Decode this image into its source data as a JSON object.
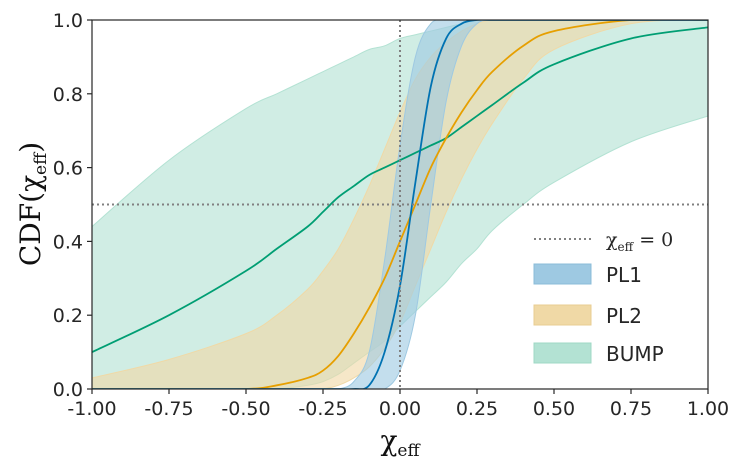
{
  "chart_data": {
    "type": "line",
    "xlabel": {
      "symbol": "χ",
      "sub": "eff"
    },
    "ylabel": {
      "prefix": "CDF(",
      "symbol": "χ",
      "sub": "eff",
      "suffix": ")"
    },
    "xlim": [
      -1.0,
      1.0
    ],
    "ylim": [
      0.0,
      1.0
    ],
    "xticks": [
      "-1.00",
      "-0.75",
      "-0.50",
      "-0.25",
      "0.00",
      "0.25",
      "0.50",
      "0.75",
      "1.00"
    ],
    "yticks": [
      "0.0",
      "0.2",
      "0.4",
      "0.6",
      "0.8",
      "1.0"
    ],
    "grid": false,
    "legend_position": "bottom-right",
    "reference_lines": [
      {
        "orientation": "vertical",
        "value": 0.0,
        "style": "dotted",
        "color": "#808080",
        "label": {
          "symbol": "χ",
          "sub": "eff",
          "text": " = 0"
        }
      },
      {
        "orientation": "horizontal",
        "value": 0.5,
        "style": "dotted",
        "color": "#808080"
      }
    ],
    "x": [
      -1.0,
      -0.75,
      -0.5,
      -0.4,
      -0.3,
      -0.25,
      -0.2,
      -0.15,
      -0.1,
      -0.05,
      0.0,
      0.05,
      0.1,
      0.15,
      0.2,
      0.25,
      0.3,
      0.4,
      0.5,
      0.75,
      1.0
    ],
    "series": [
      {
        "name": "PL1",
        "color": "#0072b2",
        "fill": "#9ec9e2",
        "median": [
          0.0,
          0.0,
          0.0,
          0.0,
          0.0,
          0.0,
          0.0,
          0.0,
          0.01,
          0.1,
          0.28,
          0.56,
          0.82,
          0.95,
          0.99,
          1.0,
          1.0,
          1.0,
          1.0,
          1.0,
          1.0
        ],
        "lower": [
          0.0,
          0.0,
          0.0,
          0.0,
          0.0,
          0.0,
          0.0,
          0.0,
          0.0,
          0.0,
          0.05,
          0.2,
          0.5,
          0.78,
          0.93,
          0.99,
          1.0,
          1.0,
          1.0,
          1.0,
          1.0
        ],
        "upper": [
          0.0,
          0.0,
          0.0,
          0.0,
          0.0,
          0.0,
          0.0,
          0.02,
          0.1,
          0.35,
          0.66,
          0.9,
          0.99,
          1.0,
          1.0,
          1.0,
          1.0,
          1.0,
          1.0,
          1.0,
          1.0
        ]
      },
      {
        "name": "PL2",
        "color": "#e69f00",
        "fill": "#f0d9a6",
        "median": [
          0.0,
          0.0,
          0.0,
          0.01,
          0.03,
          0.05,
          0.09,
          0.15,
          0.22,
          0.3,
          0.4,
          0.5,
          0.6,
          0.68,
          0.75,
          0.81,
          0.86,
          0.93,
          0.97,
          1.0,
          1.0
        ],
        "lower": [
          0.0,
          0.0,
          0.0,
          0.0,
          0.0,
          0.0,
          0.01,
          0.03,
          0.06,
          0.11,
          0.18,
          0.28,
          0.38,
          0.48,
          0.57,
          0.65,
          0.72,
          0.84,
          0.92,
          0.99,
          1.0
        ],
        "upper": [
          0.03,
          0.08,
          0.15,
          0.2,
          0.27,
          0.32,
          0.38,
          0.46,
          0.55,
          0.65,
          0.75,
          0.84,
          0.9,
          0.94,
          0.97,
          0.99,
          1.0,
          1.0,
          1.0,
          1.0,
          1.0
        ]
      },
      {
        "name": "BUMP",
        "color": "#009e73",
        "fill": "#b3e2d3",
        "median": [
          0.1,
          0.2,
          0.32,
          0.38,
          0.44,
          0.48,
          0.52,
          0.55,
          0.58,
          0.6,
          0.62,
          0.64,
          0.66,
          0.68,
          0.71,
          0.74,
          0.77,
          0.83,
          0.88,
          0.95,
          0.98
        ],
        "lower": [
          0.0,
          0.0,
          0.0,
          0.0,
          0.01,
          0.02,
          0.04,
          0.07,
          0.1,
          0.13,
          0.17,
          0.21,
          0.25,
          0.29,
          0.34,
          0.38,
          0.43,
          0.5,
          0.56,
          0.67,
          0.74
        ],
        "upper": [
          0.44,
          0.62,
          0.76,
          0.8,
          0.84,
          0.86,
          0.88,
          0.9,
          0.92,
          0.93,
          0.95,
          0.96,
          0.97,
          0.98,
          0.99,
          1.0,
          1.0,
          1.0,
          1.0,
          1.0,
          1.0
        ]
      }
    ]
  }
}
